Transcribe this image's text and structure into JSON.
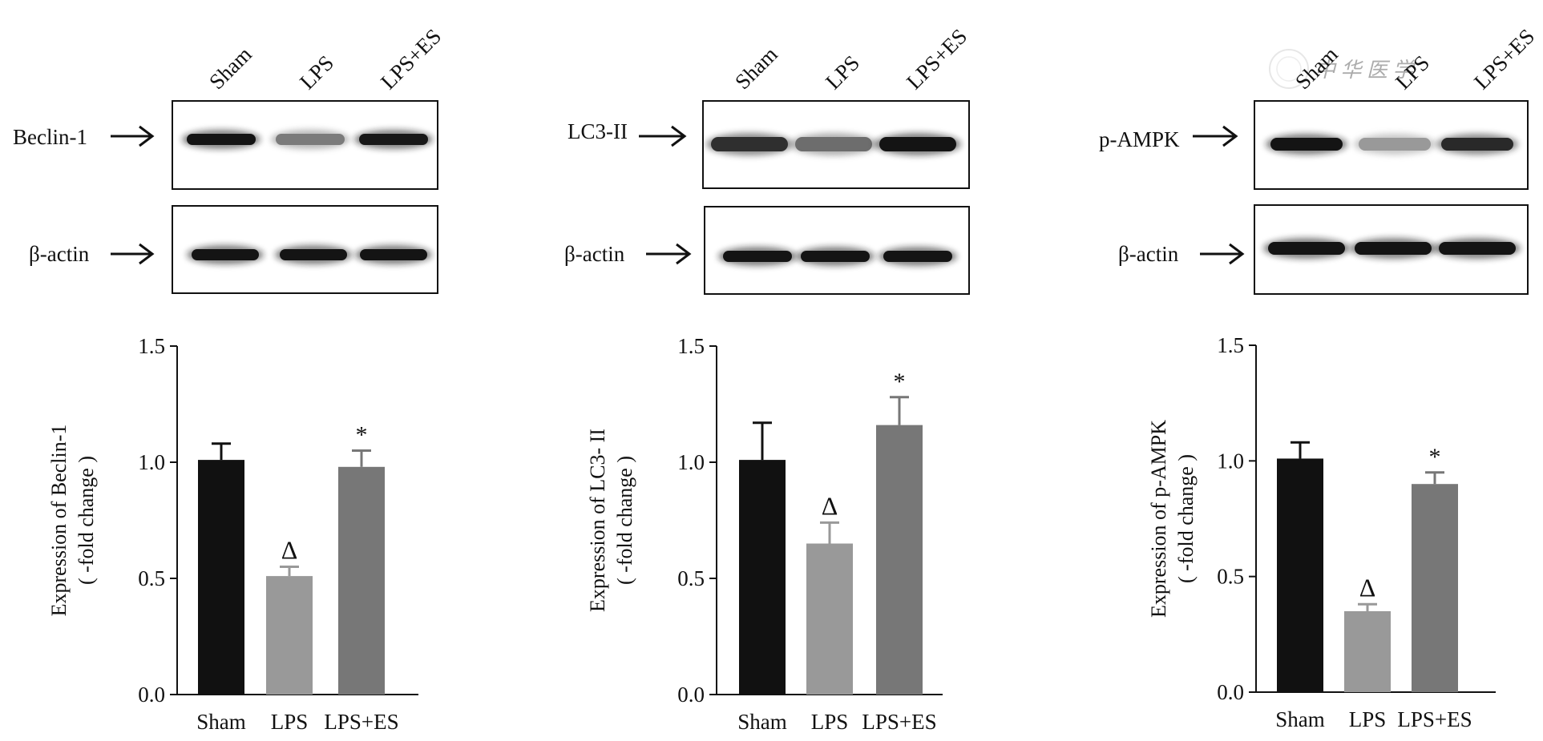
{
  "panels": [
    {
      "lanes": [
        "Sham",
        "LPS",
        "LPS+ES"
      ],
      "target_label": "Beclin-1",
      "loading_label": "β-actin",
      "target_band_intensity": [
        1.0,
        0.5,
        0.98
      ],
      "loading_band_intensity": [
        1.0,
        1.0,
        1.0
      ]
    },
    {
      "lanes": [
        "Sham",
        "LPS",
        "LPS+ES"
      ],
      "target_label": "LC3-II",
      "loading_label": "β-actin",
      "target_band_intensity": [
        1.0,
        0.65,
        1.15
      ],
      "loading_band_intensity": [
        1.0,
        1.0,
        1.0
      ]
    },
    {
      "lanes": [
        "Sham",
        "LPS",
        "LPS+ES"
      ],
      "target_label": "p-AMPK",
      "loading_label": "β-actin",
      "target_band_intensity": [
        1.0,
        0.35,
        0.9
      ],
      "loading_band_intensity": [
        1.0,
        1.0,
        1.0
      ]
    }
  ],
  "colors": {
    "sham": "#111111",
    "lps": "#999999",
    "lps_es": "#777777",
    "axis": "#111111"
  },
  "chart_data": [
    {
      "type": "bar",
      "categories": [
        "Sham",
        "LPS",
        "LPS+ES"
      ],
      "values": [
        1.01,
        0.51,
        0.98
      ],
      "errors": [
        0.07,
        0.04,
        0.07
      ],
      "annotations": [
        "",
        "Δ",
        "*"
      ],
      "ylabel": "Expression of Beclin-1",
      "ylabel2": "( -fold change )",
      "ylim": [
        0,
        1.5
      ],
      "yticks": [
        "0.0",
        "0.5",
        "1.0",
        "1.5"
      ],
      "grid": false
    },
    {
      "type": "bar",
      "categories": [
        "Sham",
        "LPS",
        "LPS+ES"
      ],
      "values": [
        1.01,
        0.65,
        1.16
      ],
      "errors": [
        0.16,
        0.09,
        0.12
      ],
      "annotations": [
        "",
        "Δ",
        "*"
      ],
      "ylabel": "Expression of LC3- II",
      "ylabel2": "( -fold change )",
      "ylim": [
        0,
        1.5
      ],
      "yticks": [
        "0.0",
        "0.5",
        "1.0",
        "1.5"
      ],
      "grid": false
    },
    {
      "type": "bar",
      "categories": [
        "Sham",
        "LPS",
        "LPS+ES"
      ],
      "values": [
        1.01,
        0.35,
        0.9
      ],
      "errors": [
        0.07,
        0.03,
        0.05
      ],
      "annotations": [
        "",
        "Δ",
        "*"
      ],
      "ylabel": "Expression of p-AMPK",
      "ylabel2": "( -fold change )",
      "ylim": [
        0,
        1.5
      ],
      "yticks": [
        "0.0",
        "0.5",
        "1.0",
        "1.5"
      ],
      "grid": false
    }
  ]
}
